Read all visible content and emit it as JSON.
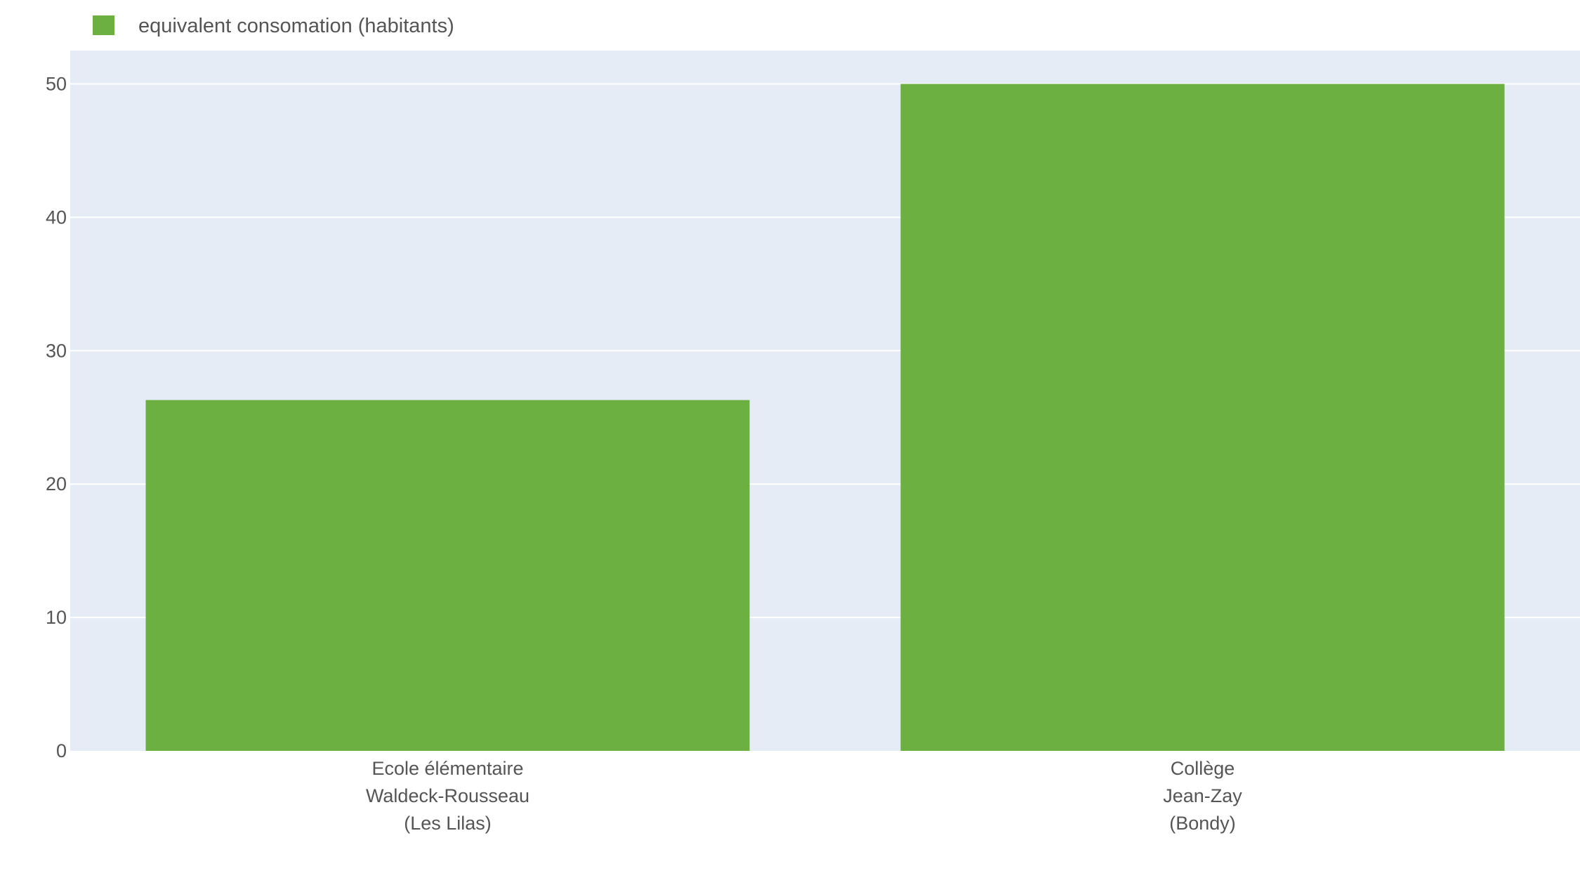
{
  "chart_data": {
    "type": "bar",
    "categories": [
      [
        "Ecole élémentaire",
        "Waldeck-Rousseau",
        "(Les Lilas)"
      ],
      [
        "Collège",
        "Jean-Zay",
        "(Bondy)"
      ]
    ],
    "series": [
      {
        "name": "equivalent consomation (habitants)",
        "values": [
          26.3,
          50
        ],
        "color": "#6db042"
      }
    ],
    "ylim": [
      0,
      52.5
    ],
    "yticks": [
      0,
      10,
      20,
      30,
      40,
      50
    ],
    "grid": true,
    "legend": "top-left",
    "plot_background": "#e5ecf6",
    "gridline_color": "#ffffff"
  }
}
